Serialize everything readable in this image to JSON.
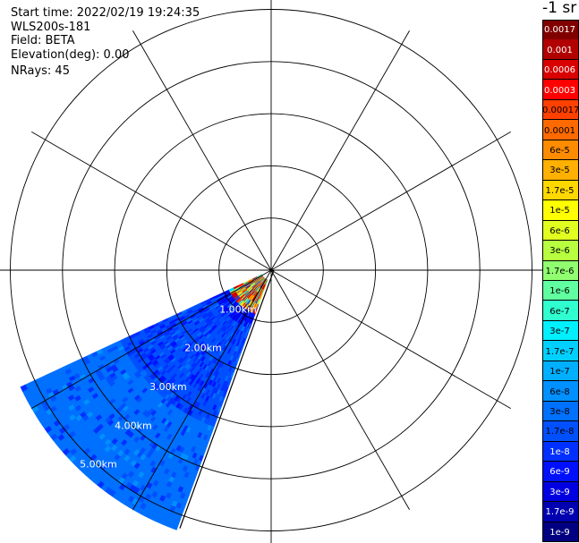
{
  "info": {
    "start_time": "Start time: 2022/02/19 19:24:35",
    "instrument": "WLS200s-181",
    "field": "Field: BETA",
    "elevation": "Elevation(deg): 0.00",
    "nrays": "NRays: 45"
  },
  "colorbar": {
    "unit": "-1 sr",
    "labels": [
      "0.0017",
      "0.001",
      "0.0006",
      "0.0003",
      "0.00017",
      "0.0001",
      "6e-5",
      "3e-5",
      "1.7e-5",
      "1e-5",
      "6e-6",
      "3e-6",
      "1.7e-6",
      "1e-6",
      "6e-7",
      "3e-7",
      "1.7e-7",
      "1e-7",
      "6e-8",
      "3e-8",
      "1.7e-8",
      "1e-8",
      "6e-9",
      "3e-9",
      "1.7e-9",
      "1e-9"
    ],
    "colors": [
      "#800000",
      "#b00000",
      "#d80000",
      "#ff0000",
      "#ff4000",
      "#ff6a00",
      "#ff8c00",
      "#ffb000",
      "#ffd800",
      "#ffff00",
      "#e0ff20",
      "#b8ff40",
      "#90ff70",
      "#60ffa0",
      "#30ffd0",
      "#00f0ff",
      "#00d0ff",
      "#00b0ff",
      "#0090ff",
      "#0070ff",
      "#0050ff",
      "#0030ff",
      "#0010ff",
      "#0000e0",
      "#0000b0",
      "#000080"
    ],
    "label_colors": [
      "#ffffff",
      "#ffffff",
      "#ffffff",
      "#ffffff",
      "#000000",
      "#000000",
      "#000000",
      "#000000",
      "#000000",
      "#000000",
      "#000000",
      "#000000",
      "#000000",
      "#000000",
      "#000000",
      "#000000",
      "#000000",
      "#000000",
      "#000000",
      "#000000",
      "#000000",
      "#ffffff",
      "#ffffff",
      "#ffffff",
      "#ffffff",
      "#ffffff"
    ]
  },
  "chart_data": {
    "type": "heatmap",
    "projection": "polar",
    "field": "BETA",
    "range_rings_km": [
      1,
      2,
      3,
      4,
      5
    ],
    "ring_labels": [
      "1.00km",
      "2.00km",
      "3.00km",
      "4.00km",
      "5.00km"
    ],
    "azimuth_spokes_deg": [
      0,
      30,
      60,
      90,
      120,
      150,
      180,
      210,
      240,
      270,
      300,
      330
    ],
    "max_range_km": 5.2,
    "sector_azimuth_deg": [
      200,
      245
    ],
    "nrays": 45,
    "near_range_km": [
      0.2,
      0.8
    ],
    "near_range_values": "1e-6 to 0.001",
    "far_range_dominant_value": "1.7e-8",
    "far_range_speckle_values": [
      "6e-9",
      "3e-9",
      "3e-8"
    ]
  }
}
